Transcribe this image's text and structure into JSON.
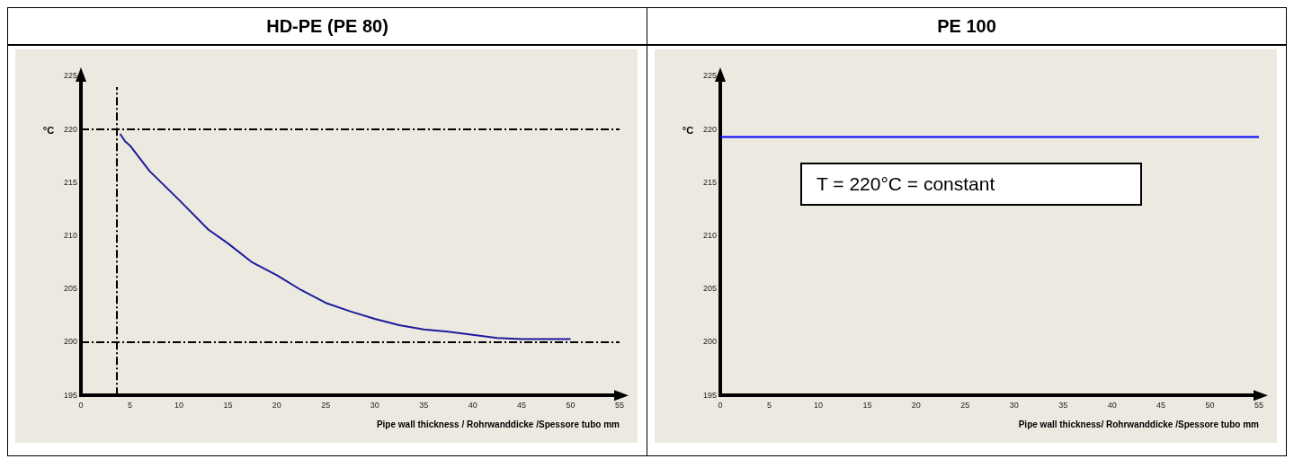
{
  "chart_data": [
    {
      "type": "line",
      "title": "HD-PE (PE 80)",
      "xlabel": "Pipe wall thickness / Rohrwanddicke /Spessore tubo mm",
      "ylabel": "°C",
      "xlim": [
        0,
        55
      ],
      "xticks": [
        0,
        5,
        10,
        15,
        20,
        25,
        30,
        35,
        40,
        45,
        50,
        55
      ],
      "ylim": [
        195,
        225
      ],
      "yticks": [
        195,
        200,
        205,
        210,
        215,
        220,
        225
      ],
      "marker": "none",
      "series": [
        {
          "color": "#1c1c9c",
          "x": [
            4.0,
            4.5,
            5,
            7,
            10,
            13,
            15,
            17.5,
            20,
            22.5,
            25,
            27.5,
            30,
            32.5,
            35,
            37.5,
            40,
            42.5,
            45,
            50
          ],
          "values": [
            219.6,
            218.9,
            218.5,
            216.1,
            213.4,
            210.6,
            209.3,
            207.5,
            206.3,
            204.9,
            203.7,
            202.9,
            202.2,
            201.6,
            201.2,
            201.0,
            200.7,
            200.4,
            200.3,
            200.3
          ]
        }
      ],
      "ref_lines": [
        {
          "axis": "y",
          "value": 220,
          "line_style": "dashed",
          "color": "#000000"
        },
        {
          "axis": "y",
          "value": 200,
          "line_style": "dashed",
          "color": "#000000"
        },
        {
          "axis": "x",
          "value": 3.7,
          "line_style": "dashed",
          "color": "#000000"
        }
      ]
    },
    {
      "type": "line",
      "title": "PE 100",
      "xlabel": "Pipe wall thickness/ Rohrwanddicke /Spessore tubo mm",
      "ylabel": "°C",
      "xlim": [
        0,
        55
      ],
      "xticks": [
        0,
        5,
        10,
        15,
        20,
        25,
        30,
        35,
        40,
        45,
        50,
        55
      ],
      "ylim": [
        195,
        225
      ],
      "yticks": [
        195,
        200,
        205,
        210,
        215,
        220,
        225
      ],
      "marker": "none",
      "series": [
        {
          "color": "#0000ff",
          "x": [
            0,
            55
          ],
          "values": [
            219.3,
            219.3
          ]
        }
      ],
      "annotations": [
        "T = 220°C = constant"
      ]
    }
  ]
}
